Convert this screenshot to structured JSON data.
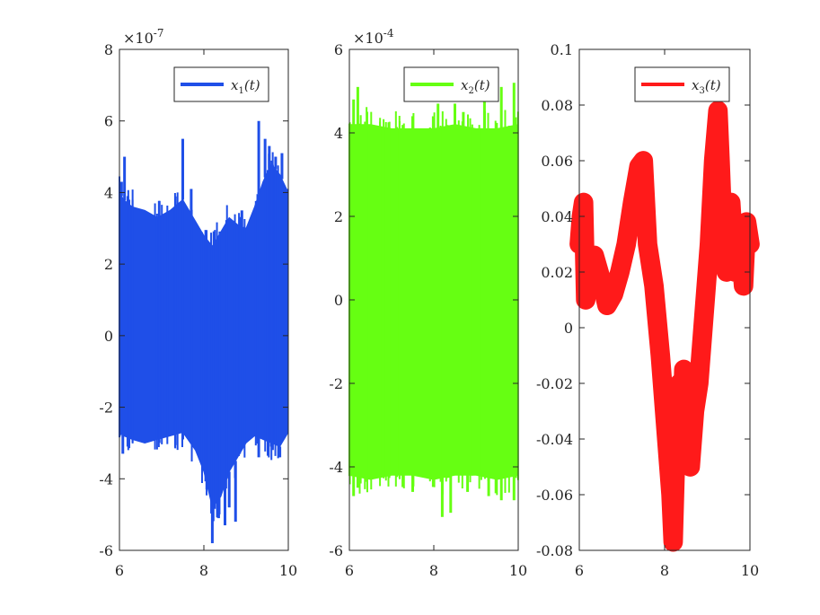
{
  "chart_data": [
    {
      "type": "line",
      "x_ticks": [
        "6",
        "8",
        "10"
      ],
      "y_ticks": [
        "-6",
        "-4",
        "-2",
        "0",
        "2",
        "4",
        "6",
        "8"
      ],
      "xlim": [
        6,
        10
      ],
      "ylim": [
        -6,
        8
      ],
      "exponent_base": "×10",
      "exponent_power": "-7",
      "color": "#1f4fe8",
      "legend": {
        "label_var": "x",
        "label_sub": "1",
        "label_arg": "(t)",
        "placement": "top-right"
      },
      "envelope": {
        "x": [
          6.0,
          6.1,
          6.3,
          6.6,
          6.9,
          7.2,
          7.5,
          7.8,
          8.0,
          8.2,
          8.4,
          8.6,
          8.8,
          9.0,
          9.2,
          9.4,
          9.6,
          9.8,
          10.0
        ],
        "upper": [
          4.0,
          3.8,
          3.6,
          3.5,
          3.3,
          3.5,
          3.8,
          3.2,
          2.8,
          2.5,
          2.9,
          3.3,
          3.1,
          3.0,
          3.6,
          4.3,
          4.8,
          4.5,
          4.0
        ],
        "lower": [
          -2.7,
          -2.8,
          -2.9,
          -3.0,
          -2.9,
          -2.8,
          -2.7,
          -3.2,
          -3.8,
          -4.8,
          -4.5,
          -3.8,
          -3.4,
          -3.0,
          -2.8,
          -2.9,
          -3.0,
          -3.1,
          -2.7
        ]
      },
      "spikes": [
        {
          "x": 6.05,
          "y": 4.3
        },
        {
          "x": 6.12,
          "y": 5.0
        },
        {
          "x": 6.2,
          "y": 3.9
        },
        {
          "x": 7.5,
          "y": 5.5
        },
        {
          "x": 7.7,
          "y": 4.1
        },
        {
          "x": 8.9,
          "y": 3.5
        },
        {
          "x": 9.3,
          "y": 6.0
        },
        {
          "x": 9.45,
          "y": 5.5
        },
        {
          "x": 9.55,
          "y": 5.3
        },
        {
          "x": 9.7,
          "y": 5.0
        },
        {
          "x": 9.85,
          "y": 5.1
        },
        {
          "x": 9.98,
          "y": 4.1
        },
        {
          "x": 6.08,
          "y": -3.3
        },
        {
          "x": 6.2,
          "y": -3.1
        },
        {
          "x": 7.5,
          "y": -2.9
        },
        {
          "x": 8.2,
          "y": -5.8
        },
        {
          "x": 8.35,
          "y": -5.1
        },
        {
          "x": 8.5,
          "y": -5.3
        },
        {
          "x": 8.6,
          "y": -4.8
        },
        {
          "x": 8.75,
          "y": -5.2
        },
        {
          "x": 9.3,
          "y": -3.4
        },
        {
          "x": 9.6,
          "y": -3.1
        },
        {
          "x": 9.8,
          "y": -3.4
        }
      ]
    },
    {
      "type": "line",
      "x_ticks": [
        "6",
        "8",
        "10"
      ],
      "y_ticks": [
        "-6",
        "-4",
        "-2",
        "0",
        "2",
        "4",
        "6"
      ],
      "xlim": [
        6,
        10
      ],
      "ylim": [
        -6,
        6
      ],
      "exponent_base": "×10",
      "exponent_power": "-4",
      "color": "#66ff12",
      "legend": {
        "label_var": "x",
        "label_sub": "2",
        "label_arg": "(t)",
        "placement": "top-right"
      },
      "envelope": {
        "x": [
          6.0,
          6.5,
          7.0,
          7.5,
          8.0,
          8.5,
          9.0,
          9.5,
          10.0
        ],
        "upper": [
          4.2,
          4.2,
          4.1,
          4.1,
          4.1,
          4.2,
          4.1,
          4.1,
          4.2
        ],
        "lower": [
          -4.2,
          -4.3,
          -4.2,
          -4.2,
          -4.3,
          -4.2,
          -4.2,
          -4.3,
          -4.2
        ]
      },
      "spikes": [
        {
          "x": 6.1,
          "y": 4.8
        },
        {
          "x": 6.2,
          "y": 5.1
        },
        {
          "x": 7.5,
          "y": 4.4
        },
        {
          "x": 8.1,
          "y": 4.7
        },
        {
          "x": 8.5,
          "y": 4.7
        },
        {
          "x": 8.7,
          "y": 4.5
        },
        {
          "x": 9.2,
          "y": 5.0
        },
        {
          "x": 9.6,
          "y": 5.1
        },
        {
          "x": 9.9,
          "y": 5.2
        },
        {
          "x": 6.1,
          "y": -4.7
        },
        {
          "x": 6.2,
          "y": -4.5
        },
        {
          "x": 7.5,
          "y": -4.6
        },
        {
          "x": 8.2,
          "y": -5.2
        },
        {
          "x": 8.4,
          "y": -5.1
        },
        {
          "x": 8.8,
          "y": -4.6
        },
        {
          "x": 9.3,
          "y": -4.7
        },
        {
          "x": 9.6,
          "y": -4.8
        },
        {
          "x": 9.9,
          "y": -4.8
        }
      ]
    },
    {
      "type": "line",
      "x_ticks": [
        "6",
        "8",
        "10"
      ],
      "y_ticks": [
        "-0.08",
        "-0.06",
        "-0.04",
        "-0.02",
        "0",
        "0.02",
        "0.04",
        "0.06",
        "0.08",
        "0.1"
      ],
      "xlim": [
        6,
        10
      ],
      "ylim": [
        -0.08,
        0.1
      ],
      "color": "#ff1a1a",
      "legend": {
        "label_var": "x",
        "label_sub": "3",
        "label_arg": "(t)",
        "placement": "top-right"
      },
      "x": [
        6.0,
        6.05,
        6.1,
        6.15,
        6.2,
        6.25,
        6.35,
        6.5,
        6.65,
        6.8,
        6.95,
        7.1,
        7.25,
        7.4,
        7.5,
        7.6,
        7.75,
        7.9,
        8.05,
        8.15,
        8.2,
        8.25,
        8.35,
        8.4,
        8.45,
        8.5,
        8.55,
        8.6,
        8.7,
        8.8,
        8.95,
        9.05,
        9.15,
        9.25,
        9.3,
        9.35,
        9.45,
        9.55,
        9.65,
        9.75,
        9.85,
        9.92,
        10.0
      ],
      "y": [
        0.03,
        0.04,
        0.045,
        0.01,
        0.02,
        0.025,
        0.026,
        0.018,
        0.008,
        0.012,
        0.02,
        0.03,
        0.045,
        0.058,
        0.06,
        0.03,
        0.015,
        -0.01,
        -0.04,
        -0.06,
        -0.077,
        -0.05,
        -0.02,
        -0.04,
        -0.015,
        -0.045,
        -0.02,
        -0.05,
        -0.03,
        -0.02,
        0.01,
        0.03,
        0.06,
        0.078,
        0.06,
        0.04,
        0.02,
        0.045,
        0.02,
        0.035,
        0.015,
        0.038,
        0.03
      ],
      "band": 0.007
    }
  ]
}
